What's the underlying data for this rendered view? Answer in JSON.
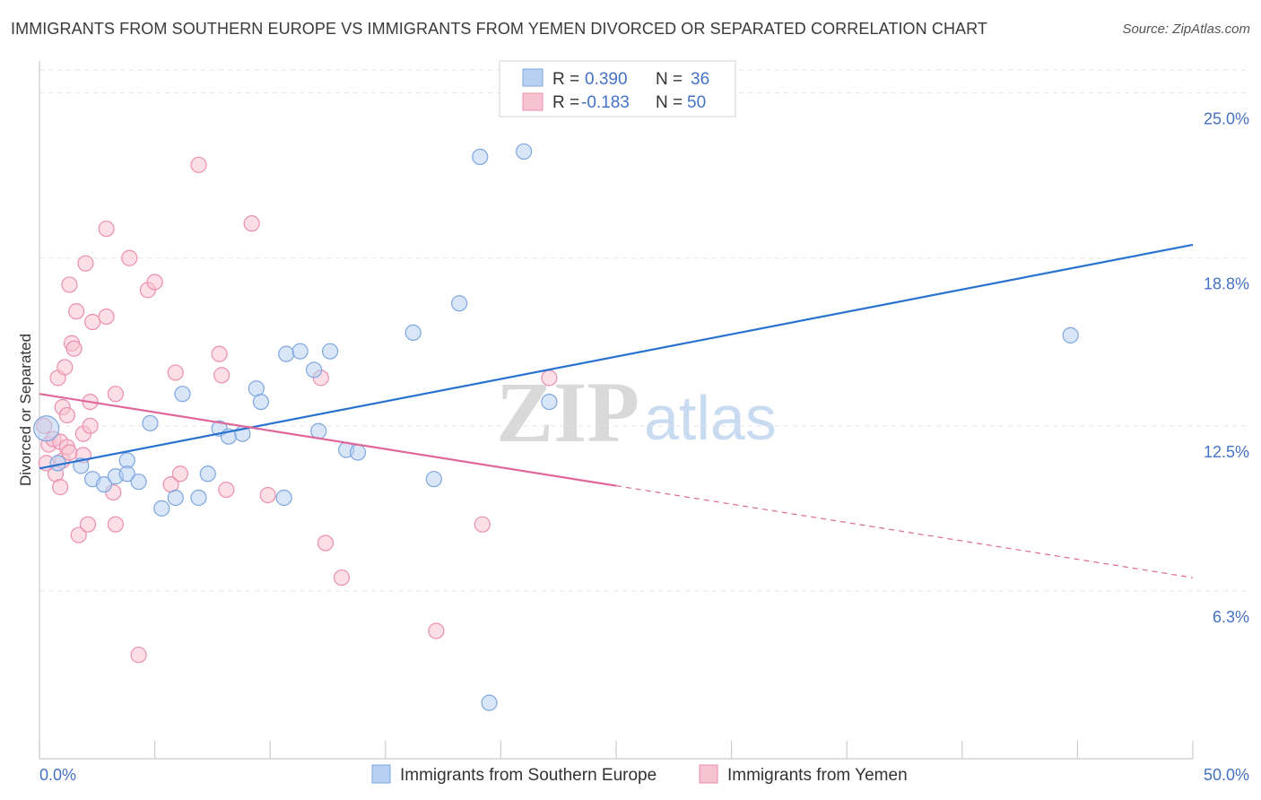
{
  "header": {
    "title": "IMMIGRANTS FROM SOUTHERN EUROPE VS IMMIGRANTS FROM YEMEN DIVORCED OR SEPARATED CORRELATION CHART",
    "source": "Source: ZipAtlas.com"
  },
  "watermark": {
    "zip": "ZIP",
    "atlas": "atlas"
  },
  "colors": {
    "blue_fill": "#b8d1f2",
    "blue_stroke": "#7ea6de",
    "blue_line": "#2a72d0",
    "pink_fill": "#f7c2d2",
    "pink_stroke": "#eb8fae",
    "pink_line": "#e0679a",
    "label": "#4472c4"
  },
  "legend": {
    "rows": [
      {
        "r_label": "R =",
        "r_value": "0.390",
        "n_label": "N =",
        "n_value": "36"
      },
      {
        "r_label": "R =",
        "r_value": "-0.183",
        "n_label": "N =",
        "n_value": "50"
      }
    ]
  },
  "chart_data": {
    "type": "scatter",
    "title": "IMMIGRANTS FROM SOUTHERN EUROPE VS IMMIGRANTS FROM YEMEN DIVORCED OR SEPARATED CORRELATION CHART",
    "xlabel": "",
    "ylabel": "Divorced or Separated",
    "xlim": [
      0,
      50
    ],
    "ylim": [
      0,
      26.2
    ],
    "x_tick_labels": [
      "0.0%",
      "50.0%"
    ],
    "y_ticks": [
      6.3,
      12.5,
      18.8,
      25.0
    ],
    "y_tick_labels": [
      "6.3%",
      "12.5%",
      "18.8%",
      "25.0%"
    ],
    "grid": true,
    "legend_position": "bottom",
    "series": [
      {
        "name": "Immigrants from Southern Europe",
        "color": "blue",
        "r": 0.39,
        "n": 36,
        "trend": {
          "x": [
            0,
            50
          ],
          "y": [
            10.9,
            19.3
          ],
          "solid_until": 50
        },
        "points": [
          [
            0.3,
            12.4,
            "large"
          ],
          [
            0.8,
            11.1
          ],
          [
            1.8,
            11.0
          ],
          [
            2.3,
            10.5
          ],
          [
            2.8,
            10.3
          ],
          [
            3.3,
            10.6
          ],
          [
            3.8,
            11.2
          ],
          [
            3.8,
            10.7
          ],
          [
            4.3,
            10.4
          ],
          [
            4.8,
            12.6
          ],
          [
            5.3,
            9.4
          ],
          [
            5.9,
            9.8
          ],
          [
            6.2,
            13.7
          ],
          [
            6.9,
            9.8
          ],
          [
            7.3,
            10.7
          ],
          [
            7.8,
            12.4
          ],
          [
            8.2,
            12.1
          ],
          [
            8.8,
            12.2
          ],
          [
            9.4,
            13.9
          ],
          [
            9.6,
            13.4
          ],
          [
            10.6,
            9.8
          ],
          [
            10.7,
            15.2
          ],
          [
            11.3,
            15.3
          ],
          [
            11.9,
            14.6
          ],
          [
            12.1,
            12.3
          ],
          [
            12.6,
            15.3
          ],
          [
            13.3,
            11.6
          ],
          [
            13.8,
            11.5
          ],
          [
            16.2,
            16.0
          ],
          [
            17.1,
            10.5
          ],
          [
            18.2,
            17.1
          ],
          [
            19.1,
            22.6
          ],
          [
            21.0,
            22.8
          ],
          [
            22.1,
            13.4
          ],
          [
            19.5,
            2.1
          ],
          [
            44.7,
            15.9
          ]
        ]
      },
      {
        "name": "Immigrants from Yemen",
        "color": "pink",
        "r": -0.183,
        "n": 50,
        "trend": {
          "x": [
            0,
            50
          ],
          "y": [
            13.7,
            6.8
          ],
          "solid_until": 25
        },
        "points": [
          [
            0.2,
            12.5
          ],
          [
            0.4,
            11.8
          ],
          [
            0.6,
            12.0
          ],
          [
            0.9,
            11.9
          ],
          [
            1.0,
            11.2
          ],
          [
            0.7,
            10.7
          ],
          [
            0.8,
            14.3
          ],
          [
            0.9,
            10.2
          ],
          [
            1.0,
            13.2
          ],
          [
            1.1,
            14.7
          ],
          [
            1.2,
            11.7
          ],
          [
            1.2,
            12.9
          ],
          [
            1.3,
            11.5
          ],
          [
            1.3,
            17.8
          ],
          [
            1.4,
            15.6
          ],
          [
            1.5,
            15.4
          ],
          [
            1.6,
            16.8
          ],
          [
            1.7,
            8.4
          ],
          [
            1.9,
            12.2
          ],
          [
            1.9,
            11.4
          ],
          [
            2.0,
            18.6
          ],
          [
            2.1,
            8.8
          ],
          [
            2.2,
            12.5
          ],
          [
            2.2,
            13.4
          ],
          [
            2.3,
            16.4
          ],
          [
            2.9,
            16.6
          ],
          [
            2.9,
            19.9
          ],
          [
            3.2,
            10.0
          ],
          [
            3.3,
            8.8
          ],
          [
            3.3,
            13.7
          ],
          [
            3.9,
            18.8
          ],
          [
            4.3,
            3.9
          ],
          [
            4.7,
            17.6
          ],
          [
            5.0,
            17.9
          ],
          [
            5.7,
            10.3
          ],
          [
            5.9,
            14.5
          ],
          [
            6.1,
            10.7
          ],
          [
            6.9,
            22.3
          ],
          [
            7.8,
            15.2
          ],
          [
            7.9,
            14.4
          ],
          [
            8.1,
            10.1
          ],
          [
            9.2,
            20.1
          ],
          [
            9.9,
            9.9
          ],
          [
            12.2,
            14.3
          ],
          [
            12.4,
            8.1
          ],
          [
            13.1,
            6.8
          ],
          [
            17.2,
            4.8
          ],
          [
            19.2,
            8.8
          ],
          [
            22.1,
            14.3
          ],
          [
            0.3,
            11.1
          ]
        ]
      }
    ]
  }
}
